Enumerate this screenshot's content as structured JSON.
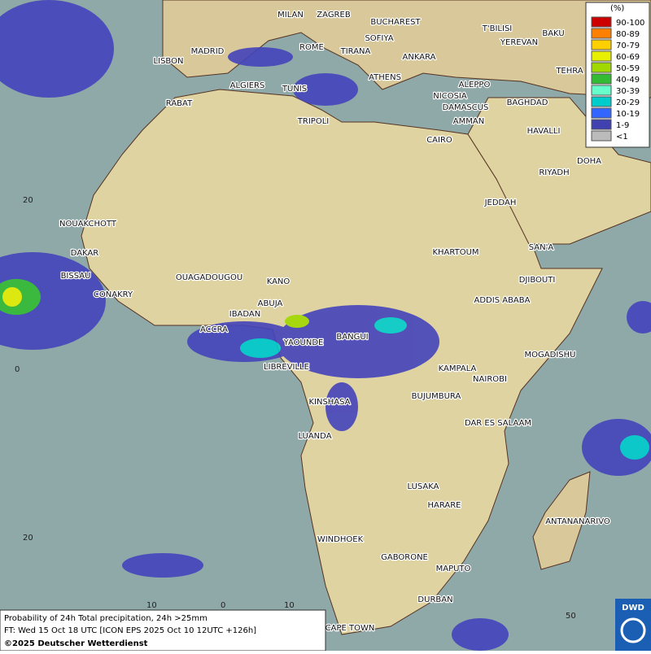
{
  "legend": {
    "title": "(%)",
    "items": [
      {
        "label": "90-100",
        "color": "#cc0000"
      },
      {
        "label": "80-89",
        "color": "#ff7f00"
      },
      {
        "label": "70-79",
        "color": "#ffd000"
      },
      {
        "label": "60-69",
        "color": "#e6f000"
      },
      {
        "label": "50-59",
        "color": "#a0d800"
      },
      {
        "label": "40-49",
        "color": "#33bb33"
      },
      {
        "label": "30-39",
        "color": "#66ffcc"
      },
      {
        "label": "20-29",
        "color": "#00cccc"
      },
      {
        "label": "10-19",
        "color": "#3366ff"
      },
      {
        "label": "1-9",
        "color": "#4040b0"
      },
      {
        "label": "<1",
        "color": "#bbbbbb"
      }
    ]
  },
  "cities": [
    "MILAN",
    "ZAGREB",
    "BUCHAREST",
    "SOFIYA",
    "T'BILISI",
    "BAKU",
    "YEREVAN",
    "MADRID",
    "ROME",
    "TIRANA",
    "ANKARA",
    "LISBON",
    "TEHRA",
    "ALGIERS",
    "TUNIS",
    "ATHENS",
    "ALEPPO",
    "RABAT",
    "NICOSIA",
    "BAGHDAD",
    "DAMASCUS",
    "TRIPOLI",
    "AMMAN",
    "HAVALLI",
    "DOHA",
    "CAIRO",
    "RIYADH",
    "JEDDAH",
    "NOUAKCHOTT",
    "SAN'A",
    "DAKAR",
    "KHARTOUM",
    "BISSAU",
    "OUAGADOUGOU",
    "DJIBOUTI",
    "KANO",
    "CONAKRY",
    "ABUJA",
    "ADDIS ABABA",
    "IBADAN",
    "ACCRA",
    "BANGUI",
    "YAOUNDE",
    "MOGADISHU",
    "KAMPALA",
    "LIBREVILLE",
    "NAIROBI",
    "BUJUMBURA",
    "KINSHASA",
    "DAR ES SALAAM",
    "LUANDA",
    "LUSAKA",
    "HARARE",
    "ANTANANARIVO",
    "WINDHOEK",
    "GABORONE",
    "MAPUTO",
    "DURBAN",
    "CAPE TOWN"
  ],
  "grid_labels": {
    "lat": [
      "20",
      "0",
      "20"
    ],
    "lon": [
      "10",
      "0",
      "10",
      "50"
    ]
  },
  "caption": [
    "Probability of 24h Total precipitation, 24h >25mm",
    "FT: Wed 15 Oct 18 UTC [ICON EPS 2025 Oct 10 12UTC +126h]",
    "©2025 Deutscher Wetterdienst"
  ],
  "logo": "DWD"
}
